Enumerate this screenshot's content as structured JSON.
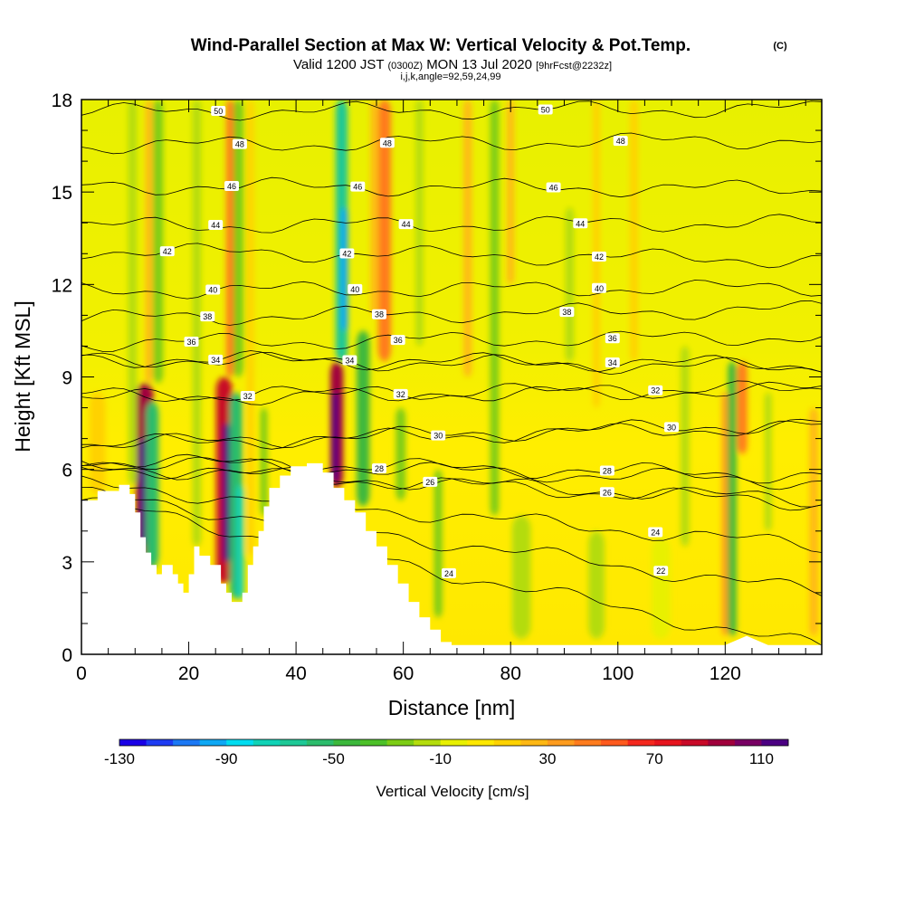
{
  "title": {
    "main": "Wind-Parallel Section at Max W: Vertical Velocity & Pot.Temp.",
    "copyright": "(C)",
    "valid_prefix": "Valid 1200 JST",
    "valid_utc": "(0300Z)",
    "valid_date": "MON 13 Jul 2020",
    "fcst": "[9hrFcst@2232z]",
    "subtitle": "i,j,k,angle=92,59,24,99"
  },
  "chart_data": {
    "type": "heatmap",
    "xlabel": "Distance [nm]",
    "ylabel": "Height [Kft MSL]",
    "xlim": [
      0,
      138
    ],
    "ylim": [
      0,
      18
    ],
    "x_ticks": [
      0,
      20,
      40,
      60,
      80,
      100,
      120
    ],
    "y_ticks": [
      0,
      3,
      6,
      9,
      12,
      15,
      18
    ],
    "x_minor_step": 5,
    "y_minor_step": 1,
    "colorbar": {
      "label": "Vertical Velocity [cm/s]",
      "min": -130,
      "max": 120,
      "tick_labels": [
        "-130",
        "-90",
        "-50",
        "-10",
        "30",
        "70",
        "110"
      ],
      "tick_values": [
        -130,
        -90,
        -50,
        -10,
        30,
        70,
        110
      ],
      "colors": [
        "#1a00e6",
        "#1e3cf2",
        "#1c78f4",
        "#0fa8f4",
        "#00dcf0",
        "#10d2b6",
        "#1ec896",
        "#2cbc6c",
        "#3cb83c",
        "#4cc028",
        "#7ccc14",
        "#b4dc0c",
        "#e8f000",
        "#ffe800",
        "#ffd200",
        "#ffb814",
        "#ff9c1e",
        "#ff7c1e",
        "#ff5a1e",
        "#f4281e",
        "#e6141e",
        "#c80a28",
        "#a0003c",
        "#780064",
        "#4b0082"
      ]
    },
    "terrain_profile": [
      [
        0,
        5.0
      ],
      [
        3,
        5.0
      ],
      [
        3,
        5.3
      ],
      [
        7,
        5.3
      ],
      [
        7,
        5.5
      ],
      [
        9,
        5.5
      ],
      [
        9,
        5.2
      ],
      [
        10,
        5.2
      ],
      [
        10,
        4.6
      ],
      [
        11,
        4.6
      ],
      [
        11,
        3.8
      ],
      [
        12,
        3.8
      ],
      [
        12,
        3.3
      ],
      [
        13,
        3.3
      ],
      [
        13,
        2.9
      ],
      [
        14,
        2.9
      ],
      [
        14,
        2.6
      ],
      [
        15,
        2.6
      ],
      [
        15,
        2.9
      ],
      [
        17,
        2.9
      ],
      [
        17,
        2.6
      ],
      [
        18,
        2.6
      ],
      [
        18,
        2.3
      ],
      [
        19,
        2.3
      ],
      [
        19,
        2.0
      ],
      [
        20,
        2.0
      ],
      [
        20,
        2.6
      ],
      [
        21,
        2.6
      ],
      [
        21,
        3.5
      ],
      [
        22,
        3.5
      ],
      [
        22,
        3.2
      ],
      [
        24,
        3.2
      ],
      [
        24,
        2.9
      ],
      [
        26,
        2.9
      ],
      [
        26,
        2.3
      ],
      [
        27,
        2.3
      ],
      [
        27,
        2.0
      ],
      [
        28,
        2.0
      ],
      [
        28,
        1.7
      ],
      [
        29,
        1.7
      ],
      [
        29,
        1.7
      ],
      [
        30,
        1.7
      ],
      [
        30,
        2.0
      ],
      [
        31,
        2.0
      ],
      [
        31,
        2.9
      ],
      [
        32,
        2.9
      ],
      [
        32,
        3.5
      ],
      [
        33,
        3.5
      ],
      [
        33,
        4.0
      ],
      [
        34,
        4.0
      ],
      [
        34,
        4.8
      ],
      [
        35,
        4.8
      ],
      [
        35,
        5.4
      ],
      [
        37,
        5.4
      ],
      [
        37,
        5.8
      ],
      [
        39,
        5.8
      ],
      [
        39,
        6.1
      ],
      [
        42,
        6.1
      ],
      [
        42,
        6.2
      ],
      [
        45,
        6.2
      ],
      [
        45,
        5.9
      ],
      [
        47,
        5.9
      ],
      [
        47,
        5.4
      ],
      [
        49,
        5.4
      ],
      [
        49,
        5.0
      ],
      [
        51,
        5.0
      ],
      [
        51,
        4.6
      ],
      [
        53,
        4.6
      ],
      [
        53,
        4.0
      ],
      [
        55,
        4.0
      ],
      [
        55,
        3.5
      ],
      [
        57,
        3.5
      ],
      [
        57,
        2.9
      ],
      [
        59,
        2.9
      ],
      [
        59,
        2.3
      ],
      [
        61,
        2.3
      ],
      [
        61,
        1.7
      ],
      [
        63,
        1.7
      ],
      [
        63,
        1.2
      ],
      [
        65,
        1.2
      ],
      [
        65,
        0.8
      ],
      [
        67,
        0.8
      ],
      [
        67,
        0.4
      ],
      [
        69,
        0.4
      ],
      [
        69,
        0.3
      ],
      [
        105,
        0.3
      ],
      [
        120,
        0.3
      ],
      [
        124,
        0.6
      ],
      [
        128,
        0.3
      ],
      [
        138,
        0.3
      ]
    ],
    "vv_cells": [
      {
        "x": 11.8,
        "ytop": 8.8,
        "ybot": 2.6,
        "w": 3.2,
        "v": 95
      },
      {
        "x": 11.3,
        "ytop": 7.0,
        "ybot": 3.5,
        "w": 1.2,
        "v": 125
      },
      {
        "x": 13.2,
        "ytop": 8.2,
        "ybot": 2.8,
        "w": 2.4,
        "v": -60
      },
      {
        "x": 14.3,
        "ytop": 18.0,
        "ybot": 8.8,
        "w": 1.8,
        "v": -25
      },
      {
        "x": 12.6,
        "ytop": 18.0,
        "ybot": 8.8,
        "w": 1.3,
        "v": 22
      },
      {
        "x": 9.5,
        "ytop": 18.0,
        "ybot": 5.5,
        "w": 1.6,
        "v": -15
      },
      {
        "x": 21.5,
        "ytop": 18.0,
        "ybot": 3.5,
        "w": 1.6,
        "v": -18
      },
      {
        "x": 26.6,
        "ytop": 9.0,
        "ybot": 2.3,
        "w": 3.0,
        "v": 88
      },
      {
        "x": 27.0,
        "ytop": 7.5,
        "ybot": 3.0,
        "w": 1.3,
        "v": 128
      },
      {
        "x": 28.8,
        "ytop": 8.5,
        "ybot": 1.8,
        "w": 2.4,
        "v": -55
      },
      {
        "x": 29.6,
        "ytop": 5.5,
        "ybot": 1.8,
        "w": 1.3,
        "v": -80
      },
      {
        "x": 29.2,
        "ytop": 18.0,
        "ybot": 9.0,
        "w": 2.0,
        "v": -28
      },
      {
        "x": 27.7,
        "ytop": 18.0,
        "ybot": 9.0,
        "w": 1.4,
        "v": 40
      },
      {
        "x": 31.5,
        "ytop": 18.0,
        "ybot": 3.2,
        "w": 1.3,
        "v": 18
      },
      {
        "x": 34.0,
        "ytop": 8.0,
        "ybot": 4.5,
        "w": 1.3,
        "v": -22
      },
      {
        "x": 47.6,
        "ytop": 9.5,
        "ybot": 5.4,
        "w": 2.4,
        "v": 95
      },
      {
        "x": 47.3,
        "ytop": 8.5,
        "ybot": 5.6,
        "w": 1.1,
        "v": 118
      },
      {
        "x": 48.5,
        "ytop": 18.0,
        "ybot": 9.5,
        "w": 2.2,
        "v": -68
      },
      {
        "x": 49.0,
        "ytop": 14.5,
        "ybot": 10.5,
        "w": 1.3,
        "v": -95
      },
      {
        "x": 52.5,
        "ytop": 10.5,
        "ybot": 4.8,
        "w": 2.4,
        "v": -45
      },
      {
        "x": 56.5,
        "ytop": 18.0,
        "ybot": 9.5,
        "w": 2.4,
        "v": 48
      },
      {
        "x": 54.5,
        "ytop": 18.0,
        "ybot": 11.0,
        "w": 1.2,
        "v": 28
      },
      {
        "x": 59.5,
        "ytop": 8.0,
        "ybot": 5.0,
        "w": 1.8,
        "v": -22
      },
      {
        "x": 63.0,
        "ytop": 18.0,
        "ybot": 10.0,
        "w": 1.4,
        "v": -20
      },
      {
        "x": 66.5,
        "ytop": 6.0,
        "ybot": 1.2,
        "w": 1.5,
        "v": -25
      },
      {
        "x": 72.0,
        "ytop": 18.0,
        "ybot": 9.0,
        "w": 1.5,
        "v": 22
      },
      {
        "x": 77.0,
        "ytop": 18.0,
        "ybot": 4.5,
        "w": 1.6,
        "v": -22
      },
      {
        "x": 80.0,
        "ytop": 18.0,
        "ybot": 12.0,
        "w": 1.3,
        "v": 20
      },
      {
        "x": 91.0,
        "ytop": 14.5,
        "ybot": 9.5,
        "w": 1.6,
        "v": -18
      },
      {
        "x": 96.0,
        "ytop": 18.0,
        "ybot": 8.0,
        "w": 1.3,
        "v": 18
      },
      {
        "x": 103.0,
        "ytop": 18.0,
        "ybot": 9.5,
        "w": 1.5,
        "v": 15
      },
      {
        "x": 112.5,
        "ytop": 10.0,
        "ybot": 3.5,
        "w": 1.6,
        "v": -18
      },
      {
        "x": 120.0,
        "ytop": 8.5,
        "ybot": 0.6,
        "w": 1.2,
        "v": 32
      },
      {
        "x": 121.3,
        "ytop": 9.5,
        "ybot": 0.6,
        "w": 1.6,
        "v": -42
      },
      {
        "x": 123.2,
        "ytop": 9.5,
        "ybot": 6.5,
        "w": 1.8,
        "v": 48
      },
      {
        "x": 128.0,
        "ytop": 8.5,
        "ybot": 4.0,
        "w": 1.3,
        "v": -20
      },
      {
        "x": 136.5,
        "ytop": 8.0,
        "ybot": 0.6,
        "w": 1.6,
        "v": 25
      },
      {
        "x": 82.0,
        "ytop": 4.5,
        "ybot": 0.5,
        "w": 3.5,
        "v": -12
      },
      {
        "x": 96.0,
        "ytop": 4.0,
        "ybot": 0.5,
        "w": 3.0,
        "v": -12
      },
      {
        "x": 108.0,
        "ytop": 3.8,
        "ybot": 0.5,
        "w": 3.5,
        "v": -10
      },
      {
        "x": 3.0,
        "ytop": 8.5,
        "ybot": 5.2,
        "w": 3.0,
        "v": 10
      }
    ],
    "theta_levels": [
      {
        "value": 24,
        "y_left": 5.0,
        "y_right": 0.2,
        "label_x": 68.5
      },
      {
        "value": 22,
        "y_left": 5.2,
        "y_right": 2.0,
        "label_x": 108.0
      },
      {
        "value": 24,
        "y_left": 5.5,
        "y_right": 3.5,
        "label_x": 107.0
      },
      {
        "value": 26,
        "y_left": 6.1,
        "y_right": 5.0,
        "label_x": 65.0
      },
      {
        "value": 26,
        "y_left": 6.1,
        "y_right": 4.9,
        "label_x": 98.0
      },
      {
        "value": 28,
        "y_left": 6.3,
        "y_right": 5.6,
        "label_x": 55.5
      },
      {
        "value": 28,
        "y_left": 6.3,
        "y_right": 5.8,
        "label_x": 98.0
      },
      {
        "value": 30,
        "y_left": 6.8,
        "y_right": 7.5,
        "label_x": 110.0
      },
      {
        "value": 30,
        "y_left": 6.8,
        "y_right": 7.4,
        "label_x": 66.5
      },
      {
        "value": 32,
        "y_left": 8.3,
        "y_right": 8.6,
        "label_x": 31.0
      },
      {
        "value": 32,
        "y_left": 8.3,
        "y_right": 8.6,
        "label_x": 59.5
      },
      {
        "value": 32,
        "y_left": 8.4,
        "y_right": 8.6,
        "label_x": 107.0
      },
      {
        "value": 34,
        "y_left": 9.6,
        "y_right": 9.3,
        "label_x": 25.0
      },
      {
        "value": 34,
        "y_left": 9.6,
        "y_right": 9.4,
        "label_x": 50.0
      },
      {
        "value": 34,
        "y_left": 9.6,
        "y_right": 9.4,
        "label_x": 99.0
      },
      {
        "value": 36,
        "y_left": 10.1,
        "y_right": 10.3,
        "label_x": 20.5
      },
      {
        "value": 36,
        "y_left": 10.1,
        "y_right": 10.3,
        "label_x": 59.0
      },
      {
        "value": 36,
        "y_left": 10.1,
        "y_right": 10.3,
        "label_x": 99.0
      },
      {
        "value": 38,
        "y_left": 10.9,
        "y_right": 11.2,
        "label_x": 23.5
      },
      {
        "value": 38,
        "y_left": 10.9,
        "y_right": 11.2,
        "label_x": 55.5
      },
      {
        "value": 38,
        "y_left": 10.9,
        "y_right": 11.2,
        "label_x": 90.5
      },
      {
        "value": 40,
        "y_left": 11.8,
        "y_right": 11.9,
        "label_x": 24.5
      },
      {
        "value": 40,
        "y_left": 11.8,
        "y_right": 11.9,
        "label_x": 51.0
      },
      {
        "value": 40,
        "y_left": 11.8,
        "y_right": 11.9,
        "label_x": 96.5
      },
      {
        "value": 42,
        "y_left": 13.1,
        "y_right": 12.8,
        "label_x": 16.0
      },
      {
        "value": 42,
        "y_left": 13.1,
        "y_right": 12.8,
        "label_x": 49.5
      },
      {
        "value": 42,
        "y_left": 13.1,
        "y_right": 12.8,
        "label_x": 96.5
      },
      {
        "value": 44,
        "y_left": 13.9,
        "y_right": 14.0,
        "label_x": 25.0
      },
      {
        "value": 44,
        "y_left": 13.9,
        "y_right": 14.0,
        "label_x": 60.5
      },
      {
        "value": 44,
        "y_left": 13.9,
        "y_right": 14.0,
        "label_x": 93.0
      },
      {
        "value": 46,
        "y_left": 15.2,
        "y_right": 15.1,
        "label_x": 28.0
      },
      {
        "value": 46,
        "y_left": 15.2,
        "y_right": 15.1,
        "label_x": 51.5
      },
      {
        "value": 46,
        "y_left": 15.2,
        "y_right": 15.1,
        "label_x": 88.0
      },
      {
        "value": 48,
        "y_left": 16.5,
        "y_right": 16.7,
        "label_x": 29.5
      },
      {
        "value": 48,
        "y_left": 16.5,
        "y_right": 16.7,
        "label_x": 57.0
      },
      {
        "value": 48,
        "y_left": 16.5,
        "y_right": 16.7,
        "label_x": 100.5
      },
      {
        "value": 50,
        "y_left": 17.6,
        "y_right": 17.7,
        "label_x": 25.5
      },
      {
        "value": 50,
        "y_left": 17.6,
        "y_right": 17.7,
        "label_x": 86.5
      }
    ]
  }
}
